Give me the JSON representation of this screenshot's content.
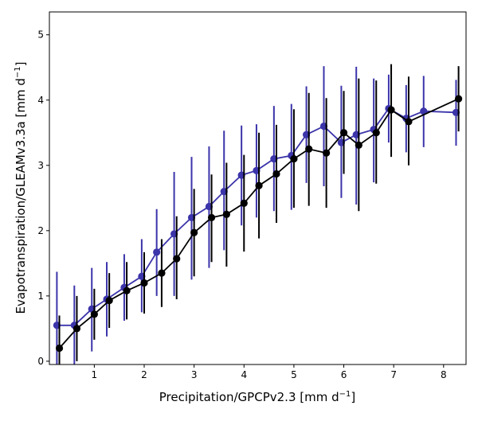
{
  "chart_data": {
    "type": "line",
    "title": "",
    "xlabel_main": "Precipitation/GPCPv2.3 [mm d",
    "xlabel_sup": "−1",
    "xlabel_end": "]",
    "ylabel_main": "Evapotranspiration/GLEAMv3.3a [mm d",
    "ylabel_sup": "−1",
    "ylabel_end": "]",
    "xlim": [
      0.1,
      8.45
    ],
    "ylim": [
      -0.05,
      5.35
    ],
    "xticks": [
      1,
      2,
      3,
      4,
      5,
      6,
      7,
      8
    ],
    "xtick_labels": [
      "1",
      "2",
      "3",
      "4",
      "5",
      "6",
      "7",
      "8"
    ],
    "yticks": [
      0,
      1,
      2,
      3,
      4,
      5
    ],
    "ytick_labels": [
      "0",
      "1",
      "2",
      "3",
      "4",
      "5"
    ],
    "grid": false,
    "series": [
      {
        "color": "#3b34aa",
        "x": [
          0.25,
          0.6,
          0.95,
          1.25,
          1.6,
          1.95,
          2.25,
          2.6,
          2.95,
          3.3,
          3.6,
          3.95,
          4.25,
          4.6,
          4.95,
          5.25,
          5.6,
          5.95,
          6.25,
          6.6,
          6.9,
          7.25,
          7.6,
          8.25
        ],
        "y": [
          0.55,
          0.55,
          0.8,
          0.95,
          1.13,
          1.3,
          1.67,
          1.95,
          2.2,
          2.37,
          2.6,
          2.85,
          2.92,
          3.1,
          3.15,
          3.47,
          3.6,
          3.35,
          3.47,
          3.55,
          3.87,
          3.72,
          3.83,
          3.81
        ],
        "ylow": [
          -0.25,
          -0.05,
          0.15,
          0.38,
          0.62,
          0.75,
          1.0,
          1.0,
          1.25,
          1.43,
          1.7,
          2.08,
          2.2,
          2.3,
          2.32,
          2.73,
          2.68,
          2.5,
          2.4,
          2.74,
          3.35,
          3.2,
          3.28,
          3.3
        ],
        "yhigh": [
          1.37,
          1.16,
          1.43,
          1.52,
          1.64,
          1.87,
          2.33,
          2.9,
          3.13,
          3.29,
          3.53,
          3.61,
          3.63,
          3.91,
          3.94,
          4.21,
          4.52,
          4.22,
          4.51,
          4.33,
          4.39,
          4.23,
          4.37,
          4.31
        ]
      },
      {
        "color": "#000000",
        "x": [
          0.3,
          0.65,
          1.0,
          1.3,
          1.65,
          2.0,
          2.35,
          2.65,
          3.0,
          3.35,
          3.65,
          4.0,
          4.3,
          4.65,
          5.0,
          5.3,
          5.65,
          6.0,
          6.3,
          6.65,
          6.95,
          7.3,
          8.3
        ],
        "y": [
          0.2,
          0.5,
          0.72,
          0.93,
          1.08,
          1.2,
          1.35,
          1.57,
          1.97,
          2.2,
          2.25,
          2.42,
          2.69,
          2.87,
          3.1,
          3.25,
          3.19,
          3.5,
          3.31,
          3.5,
          3.85,
          3.67,
          4.02
        ],
        "ylow": [
          -0.3,
          0.0,
          0.33,
          0.51,
          0.64,
          0.73,
          0.83,
          0.95,
          1.3,
          1.52,
          1.45,
          1.68,
          1.88,
          2.12,
          2.35,
          2.38,
          2.35,
          2.87,
          2.3,
          2.72,
          3.13,
          3.0,
          3.52
        ],
        "yhigh": [
          0.7,
          1.0,
          1.11,
          1.35,
          1.52,
          1.67,
          1.87,
          2.22,
          2.64,
          2.86,
          3.04,
          3.16,
          3.5,
          3.62,
          3.86,
          4.11,
          4.03,
          4.14,
          4.33,
          4.3,
          4.55,
          4.36,
          4.52
        ]
      }
    ]
  }
}
